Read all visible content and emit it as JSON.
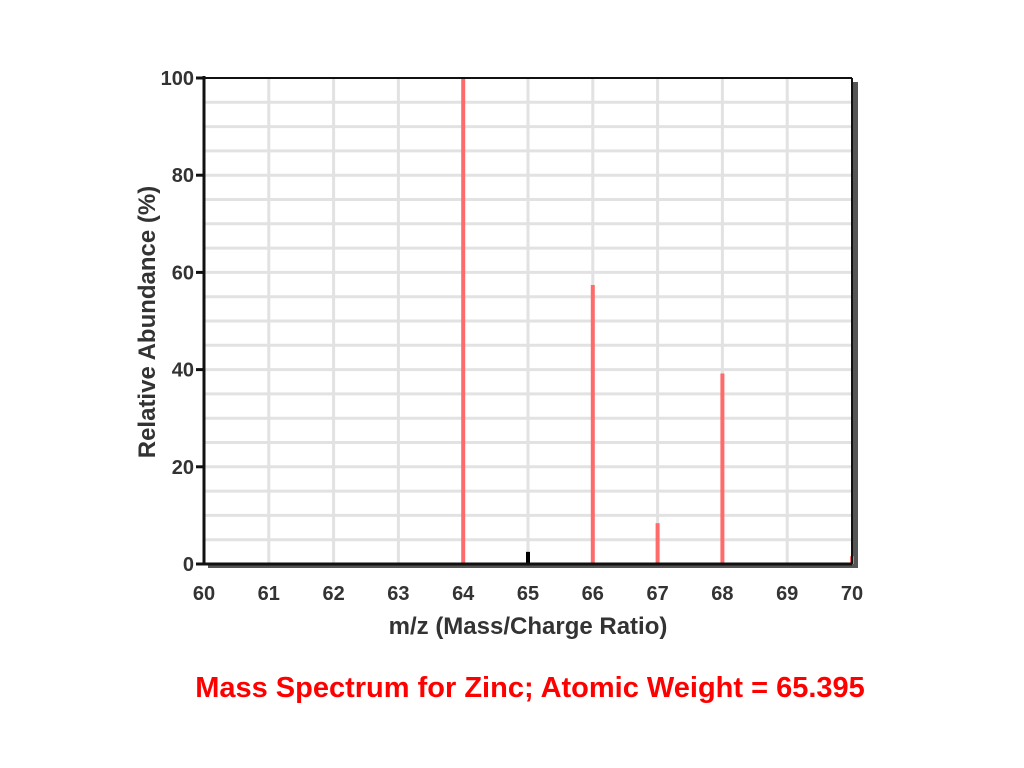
{
  "caption": "Mass Spectrum for Zinc; Atomic Weight = 65.395",
  "colors": {
    "peak": "#ff6b6b",
    "minor_peak": "#000000",
    "grid": "#e2e2e2",
    "axis": "#111111",
    "caption": "#ff0000"
  },
  "chart_data": {
    "type": "bar",
    "title": "",
    "xlabel": "m/z (Mass/Charge Ratio)",
    "ylabel": "Relative Abundance (%)",
    "xlim": [
      60,
      70
    ],
    "ylim": [
      0,
      100
    ],
    "x_ticks": [
      60,
      61,
      62,
      63,
      64,
      65,
      66,
      67,
      68,
      69,
      70
    ],
    "y_ticks": [
      0,
      20,
      40,
      60,
      80,
      100
    ],
    "grid": true,
    "peaks": [
      {
        "x": 64,
        "y": 100,
        "color": "#ff6b6b"
      },
      {
        "x": 65,
        "y": 2.5,
        "color": "#000000"
      },
      {
        "x": 66,
        "y": 57.4,
        "color": "#ff6b6b"
      },
      {
        "x": 67,
        "y": 8.4,
        "color": "#ff6b6b"
      },
      {
        "x": 68,
        "y": 39.2,
        "color": "#ff6b6b"
      },
      {
        "x": 70,
        "y": 1.6,
        "color": "#ff6b6b"
      }
    ]
  }
}
